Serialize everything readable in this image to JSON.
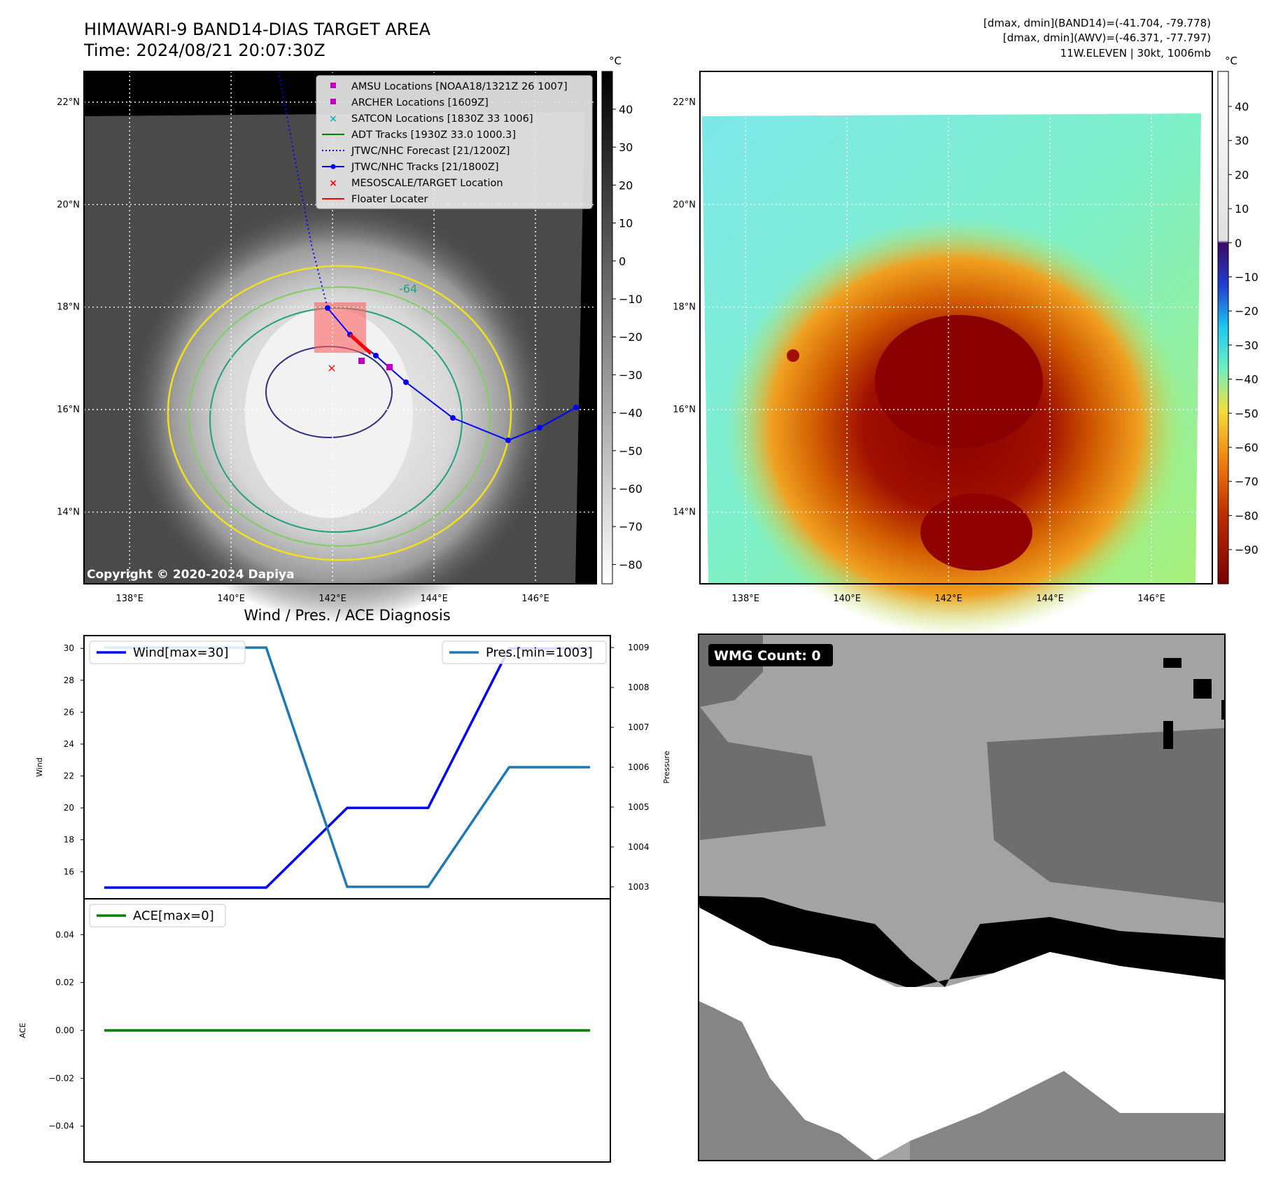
{
  "header": {
    "title": "HIMAWARI-9 BAND14-DIAS TARGET AREA",
    "time": "Time: 2024/08/21 20:07:30Z",
    "stats_band14": "[dmax, dmin](BAND14)=(-41.704, -79.778)",
    "stats_awv": "[dmax, dmin](AWV)=(-46.371, -77.797)",
    "storm_info": "11W.ELEVEN | 30kt, 1006mb"
  },
  "map": {
    "lon_ticks": [
      "138°E",
      "140°E",
      "142°E",
      "144°E",
      "146°E"
    ],
    "lat_ticks": [
      "22°N",
      "20°N",
      "18°N",
      "16°N",
      "14°N"
    ],
    "lon_values": [
      138,
      140,
      142,
      144,
      146
    ],
    "lat_values": [
      22,
      20,
      18,
      16,
      14
    ],
    "lon_range": [
      137.1,
      147.2
    ],
    "lat_range": [
      12.6,
      22.6
    ],
    "copyright": "Copyright © 2020-2024 Dapiya",
    "contour_label": "-64"
  },
  "legend": {
    "items": [
      {
        "label": "AMSU Locations [NOAA18/1321Z 26 1007]",
        "color": "#c000c0",
        "marker": "square"
      },
      {
        "label": "ARCHER Locations [1609Z]",
        "color": "#c000c0",
        "marker": "square"
      },
      {
        "label": "SATCON Locations [1830Z 33 1006]",
        "color": "#20b0b0",
        "marker": "x"
      },
      {
        "label": "ADT Tracks [1930Z 33.0 1000.3]",
        "color": "#008000",
        "marker": "line"
      },
      {
        "label": "JTWC/NHC Forecast [21/1200Z]",
        "color": "#0000ff",
        "marker": "dotted"
      },
      {
        "label": "JTWC/NHC Tracks [21/1800Z]",
        "color": "#0000ff",
        "marker": "line-dot"
      },
      {
        "label": "MESOSCALE/TARGET Location",
        "color": "#ff0000",
        "marker": "x"
      },
      {
        "label": "Floater Locater",
        "color": "#ff0000",
        "marker": "line"
      }
    ]
  },
  "colorbars": {
    "unit": "°C",
    "left_ticks": [
      "40",
      "30",
      "20",
      "10",
      "0",
      "−10",
      "−20",
      "−30",
      "−40",
      "−50",
      "−60",
      "−70",
      "−80"
    ],
    "right_ticks": [
      "40",
      "30",
      "20",
      "10",
      "0",
      "−10",
      "−20",
      "−30",
      "−40",
      "−50",
      "−60",
      "−70",
      "−80",
      "−90"
    ]
  },
  "wmg": {
    "label": "WMG Count: 0"
  },
  "chart_data": [
    {
      "type": "line",
      "title": "Wind / Pres. / ACE Diagnosis",
      "x": [
        0,
        1,
        2,
        3,
        4,
        5,
        6
      ],
      "series": [
        {
          "name": "Wind[max=30]",
          "axis": "left",
          "color": "#0000ff",
          "values": [
            15,
            15,
            15,
            20,
            20,
            30,
            30
          ]
        },
        {
          "name": "Pres.[min=1003]",
          "axis": "right",
          "color": "#1f77b4",
          "values": [
            1009,
            1009,
            1009,
            1003,
            1003,
            1006,
            1006
          ]
        }
      ],
      "ylabel": "Wind",
      "y2label": "Pressure",
      "ylim": [
        14.3,
        30.8
      ],
      "y2lim": [
        1002.7,
        1009.3
      ],
      "yticks": [
        16,
        18,
        20,
        22,
        24,
        26,
        28,
        30
      ],
      "y2ticks": [
        1003,
        1004,
        1005,
        1006,
        1007,
        1008,
        1009
      ],
      "legend": [
        "top-left",
        "top-right"
      ]
    },
    {
      "type": "line",
      "x": [
        0,
        1,
        2,
        3,
        4,
        5,
        6
      ],
      "series": [
        {
          "name": "ACE[max=0]",
          "color": "#008000",
          "values": [
            0,
            0,
            0,
            0,
            0,
            0,
            0
          ]
        }
      ],
      "ylabel": "ACE",
      "ylim": [
        -0.055,
        0.055
      ],
      "yticks": [
        0.04,
        0.02,
        0.0,
        -0.02,
        -0.04
      ],
      "ytick_labels": [
        "0.04",
        "0.02",
        "0.00",
        "−0.02",
        "−0.04"
      ],
      "legend": "top-left"
    }
  ]
}
